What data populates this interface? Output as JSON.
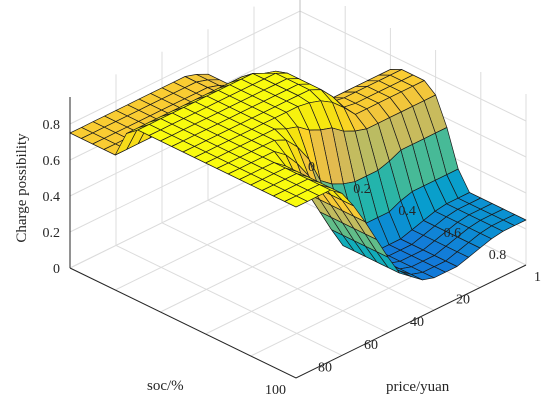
{
  "chart_data": {
    "type": "surface",
    "ylabel_text": "Charge possibility",
    "xlabel_text": "price/yuan",
    "soclabel_text": "soc/%",
    "price": [
      0,
      0.05,
      0.1,
      0.15,
      0.2,
      0.25,
      0.3,
      0.35,
      0.4,
      0.45,
      0.5,
      0.55,
      0.6,
      0.65,
      0.7,
      0.75,
      0.8,
      0.85,
      0.9,
      0.95,
      1
    ],
    "soc": [
      0,
      5,
      10,
      15,
      20,
      25,
      30,
      35,
      40,
      45,
      50,
      55,
      60,
      65,
      70,
      75,
      80,
      85,
      90,
      95,
      100
    ],
    "z": [
      [
        0.25,
        0.25,
        0.25,
        0.26,
        0.28,
        0.3,
        0.45,
        0.6,
        0.7,
        0.73,
        0.75,
        0.75,
        0.75,
        0.75,
        0.75,
        0.75,
        0.75,
        0.75,
        0.75,
        0.75,
        0.75
      ],
      [
        0.25,
        0.25,
        0.25,
        0.26,
        0.28,
        0.3,
        0.45,
        0.6,
        0.7,
        0.73,
        0.75,
        0.75,
        0.75,
        0.75,
        0.75,
        0.75,
        0.75,
        0.75,
        0.75,
        0.75,
        0.75
      ],
      [
        0.25,
        0.25,
        0.25,
        0.26,
        0.28,
        0.3,
        0.45,
        0.6,
        0.7,
        0.73,
        0.75,
        0.75,
        0.75,
        0.75,
        0.75,
        0.75,
        0.75,
        0.75,
        0.75,
        0.75,
        0.75
      ],
      [
        0.25,
        0.25,
        0.25,
        0.26,
        0.28,
        0.3,
        0.45,
        0.6,
        0.7,
        0.73,
        0.75,
        0.75,
        0.75,
        0.75,
        0.75,
        0.75,
        0.75,
        0.75,
        0.75,
        0.75,
        0.75
      ],
      [
        0.25,
        0.25,
        0.25,
        0.26,
        0.28,
        0.3,
        0.45,
        0.6,
        0.7,
        0.73,
        0.75,
        0.75,
        0.75,
        0.75,
        0.75,
        0.75,
        0.75,
        0.75,
        0.75,
        0.75,
        0.75
      ],
      [
        0.3,
        0.3,
        0.3,
        0.32,
        0.35,
        0.4,
        0.55,
        0.7,
        0.8,
        0.85,
        0.9,
        0.9,
        0.9,
        0.9,
        0.9,
        0.9,
        0.9,
        0.9,
        0.9,
        0.9,
        0.9
      ],
      [
        0.4,
        0.4,
        0.4,
        0.42,
        0.48,
        0.55,
        0.7,
        0.82,
        0.9,
        0.92,
        0.95,
        0.95,
        0.95,
        0.95,
        0.95,
        0.95,
        0.95,
        0.95,
        0.95,
        0.95,
        0.95
      ],
      [
        0.55,
        0.55,
        0.55,
        0.6,
        0.65,
        0.68,
        0.75,
        0.85,
        0.92,
        0.95,
        0.95,
        0.95,
        0.95,
        0.95,
        0.95,
        0.95,
        0.95,
        0.95,
        0.95,
        0.95,
        0.95
      ],
      [
        0.72,
        0.72,
        0.72,
        0.72,
        0.72,
        0.72,
        0.75,
        0.85,
        0.92,
        0.95,
        0.95,
        0.95,
        0.95,
        0.95,
        0.95,
        0.95,
        0.95,
        0.95,
        0.95,
        0.95,
        0.95
      ],
      [
        0.75,
        0.75,
        0.75,
        0.75,
        0.75,
        0.75,
        0.76,
        0.85,
        0.92,
        0.95,
        0.95,
        0.95,
        0.95,
        0.95,
        0.95,
        0.95,
        0.95,
        0.95,
        0.95,
        0.95,
        0.95
      ],
      [
        0.75,
        0.75,
        0.75,
        0.75,
        0.75,
        0.75,
        0.76,
        0.85,
        0.92,
        0.95,
        0.95,
        0.95,
        0.95,
        0.95,
        0.95,
        0.95,
        0.95,
        0.95,
        0.95,
        0.95,
        0.95
      ],
      [
        0.75,
        0.75,
        0.75,
        0.75,
        0.75,
        0.75,
        0.75,
        0.82,
        0.88,
        0.92,
        0.94,
        0.95,
        0.95,
        0.95,
        0.95,
        0.95,
        0.95,
        0.95,
        0.95,
        0.95,
        0.95
      ],
      [
        0.7,
        0.7,
        0.7,
        0.7,
        0.7,
        0.7,
        0.7,
        0.72,
        0.75,
        0.8,
        0.82,
        0.85,
        0.9,
        0.92,
        0.95,
        0.95,
        0.95,
        0.95,
        0.95,
        0.95,
        0.95
      ],
      [
        0.55,
        0.55,
        0.55,
        0.55,
        0.55,
        0.52,
        0.5,
        0.5,
        0.5,
        0.52,
        0.55,
        0.6,
        0.75,
        0.85,
        0.92,
        0.95,
        0.95,
        0.95,
        0.95,
        0.95,
        0.95
      ],
      [
        0.35,
        0.35,
        0.35,
        0.35,
        0.35,
        0.33,
        0.3,
        0.3,
        0.3,
        0.32,
        0.38,
        0.45,
        0.6,
        0.72,
        0.82,
        0.9,
        0.95,
        0.95,
        0.95,
        0.95,
        0.95
      ],
      [
        0.25,
        0.25,
        0.25,
        0.24,
        0.22,
        0.2,
        0.18,
        0.18,
        0.18,
        0.2,
        0.25,
        0.3,
        0.42,
        0.55,
        0.68,
        0.8,
        0.9,
        0.95,
        0.95,
        0.95,
        0.95
      ],
      [
        0.25,
        0.25,
        0.25,
        0.24,
        0.22,
        0.2,
        0.18,
        0.18,
        0.18,
        0.2,
        0.25,
        0.3,
        0.42,
        0.55,
        0.68,
        0.8,
        0.9,
        0.95,
        0.95,
        0.95,
        0.95
      ],
      [
        0.25,
        0.25,
        0.25,
        0.24,
        0.22,
        0.2,
        0.18,
        0.18,
        0.18,
        0.2,
        0.25,
        0.3,
        0.42,
        0.55,
        0.68,
        0.8,
        0.9,
        0.95,
        0.95,
        0.95,
        0.95
      ],
      [
        0.25,
        0.25,
        0.25,
        0.24,
        0.22,
        0.2,
        0.18,
        0.18,
        0.18,
        0.2,
        0.25,
        0.3,
        0.42,
        0.55,
        0.68,
        0.8,
        0.9,
        0.95,
        0.95,
        0.95,
        0.95
      ],
      [
        0.25,
        0.25,
        0.25,
        0.24,
        0.22,
        0.2,
        0.18,
        0.18,
        0.18,
        0.2,
        0.25,
        0.3,
        0.42,
        0.55,
        0.68,
        0.8,
        0.9,
        0.95,
        0.95,
        0.95,
        0.95
      ],
      [
        0.25,
        0.25,
        0.25,
        0.24,
        0.22,
        0.2,
        0.18,
        0.18,
        0.18,
        0.2,
        0.25,
        0.3,
        0.42,
        0.55,
        0.68,
        0.8,
        0.9,
        0.95,
        0.95,
        0.95,
        0.95
      ]
    ],
    "z_note_indexing": "z[i][j]: i = price index, j = soc index",
    "zlim": [
      0,
      0.95
    ],
    "z_ticks": [
      "0",
      "0.2",
      "0.4",
      "0.6",
      "0.8"
    ],
    "z_tick_values": [
      0,
      0.2,
      0.4,
      0.6,
      0.8
    ],
    "price_ticks": [
      "0",
      "0.2",
      "0.4",
      "0.6",
      "0.8",
      "1"
    ],
    "price_tick_values": [
      0,
      0.2,
      0.4,
      0.6,
      0.8,
      1
    ],
    "soc_ticks": [
      "20",
      "40",
      "60",
      "80",
      "100"
    ],
    "soc_tick_values": [
      20,
      40,
      60,
      80,
      100
    ],
    "grid": true,
    "colormap": "parula"
  }
}
